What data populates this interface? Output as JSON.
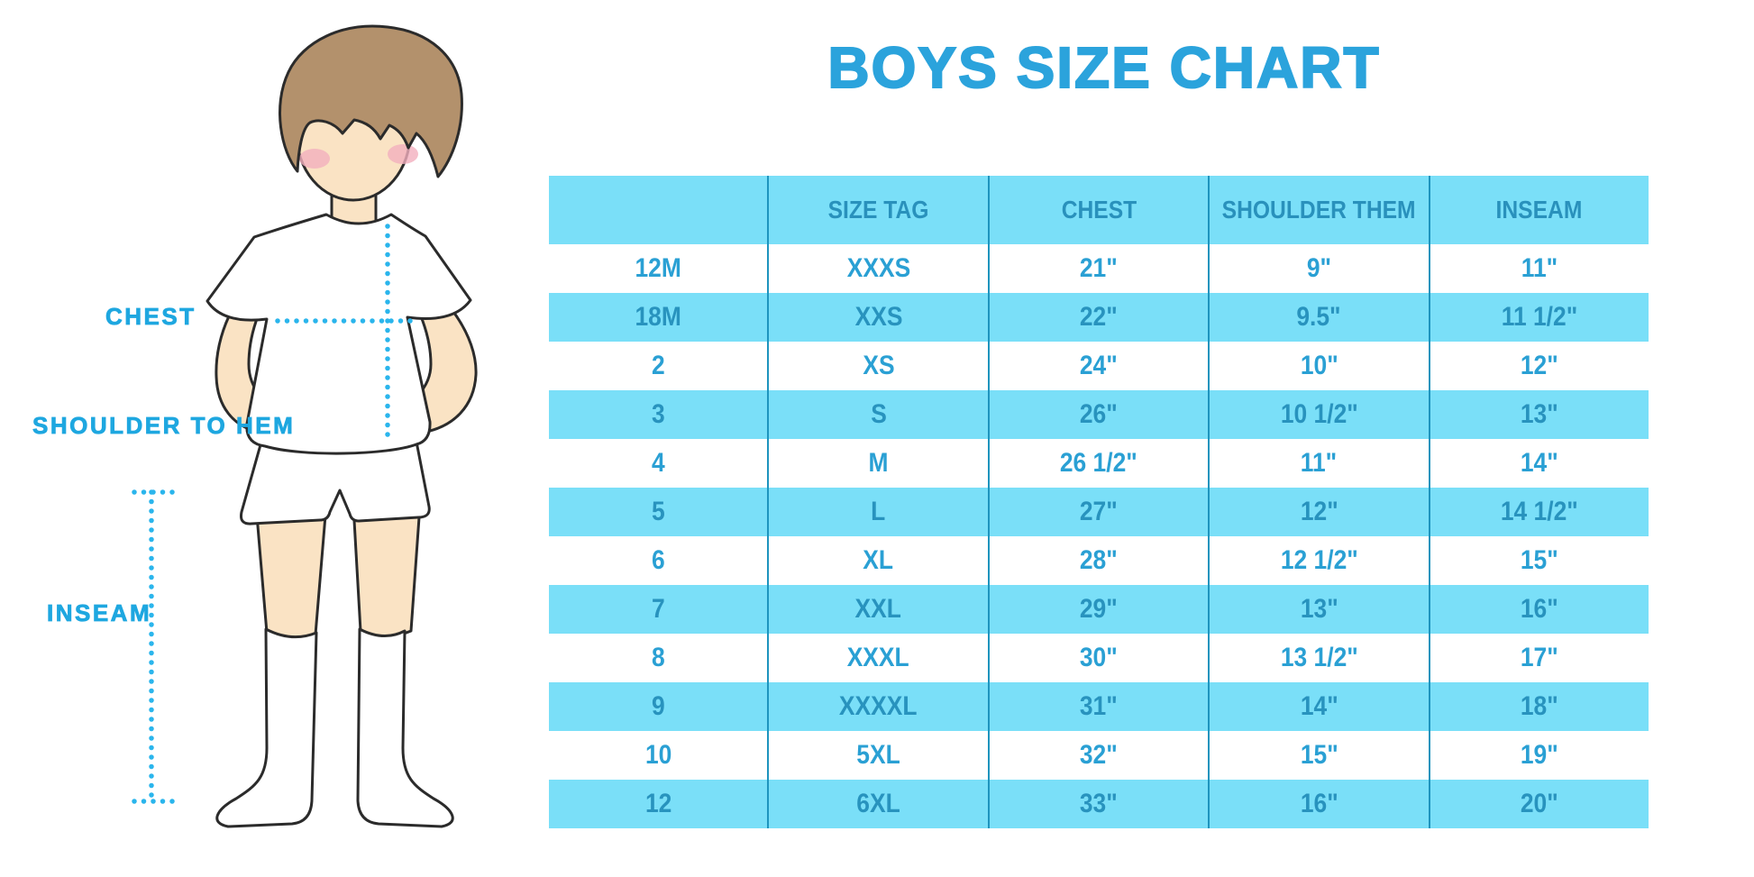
{
  "page_title": "BOYS SIZE CHART",
  "colors": {
    "title": "#2BA3DC",
    "label": "#1EA7E0",
    "dotted": "#2AB5EC",
    "band": "#7ADFF8",
    "divider": "#1E94BE",
    "header_text": "#2991BC",
    "text_on_white": "#2AA0D4",
    "text_on_band": "#2893BE",
    "hair": "#B3916C",
    "skin": "#FAE3C4",
    "blush": "#F2AFBE",
    "outline": "#2B2B2B",
    "cloth": "#FFFFFF"
  },
  "diagram": {
    "chest_label": "CHEST",
    "shoulder_to_hem_label": "SHOULDER TO HEM",
    "inseam_label": "INSEAM"
  },
  "chart_data": {
    "type": "table",
    "title": "BOYS SIZE CHART",
    "columns": [
      "",
      "SIZE TAG",
      "CHEST",
      "SHOULDER THEM",
      "INSEAM"
    ],
    "rows": [
      [
        "12M",
        "XXXS",
        "21\"",
        "9\"",
        "11\""
      ],
      [
        "18M",
        "XXS",
        "22\"",
        "9.5\"",
        "11 1/2\""
      ],
      [
        "2",
        "XS",
        "24\"",
        "10\"",
        "12\""
      ],
      [
        "3",
        "S",
        "26\"",
        "10 1/2\"",
        "13\""
      ],
      [
        "4",
        "M",
        "26 1/2\"",
        "11\"",
        "14\""
      ],
      [
        "5",
        "L",
        "27\"",
        "12\"",
        "14 1/2\""
      ],
      [
        "6",
        "XL",
        "28\"",
        "12 1/2\"",
        "15\""
      ],
      [
        "7",
        "XXL",
        "29\"",
        "13\"",
        "16\""
      ],
      [
        "8",
        "XXXL",
        "30\"",
        "13 1/2\"",
        "17\""
      ],
      [
        "9",
        "XXXXL",
        "31\"",
        "14\"",
        "18\""
      ],
      [
        "10",
        "5XL",
        "32\"",
        "15\"",
        "19\""
      ],
      [
        "12",
        "6XL",
        "33\"",
        "16\"",
        "20\""
      ]
    ]
  }
}
